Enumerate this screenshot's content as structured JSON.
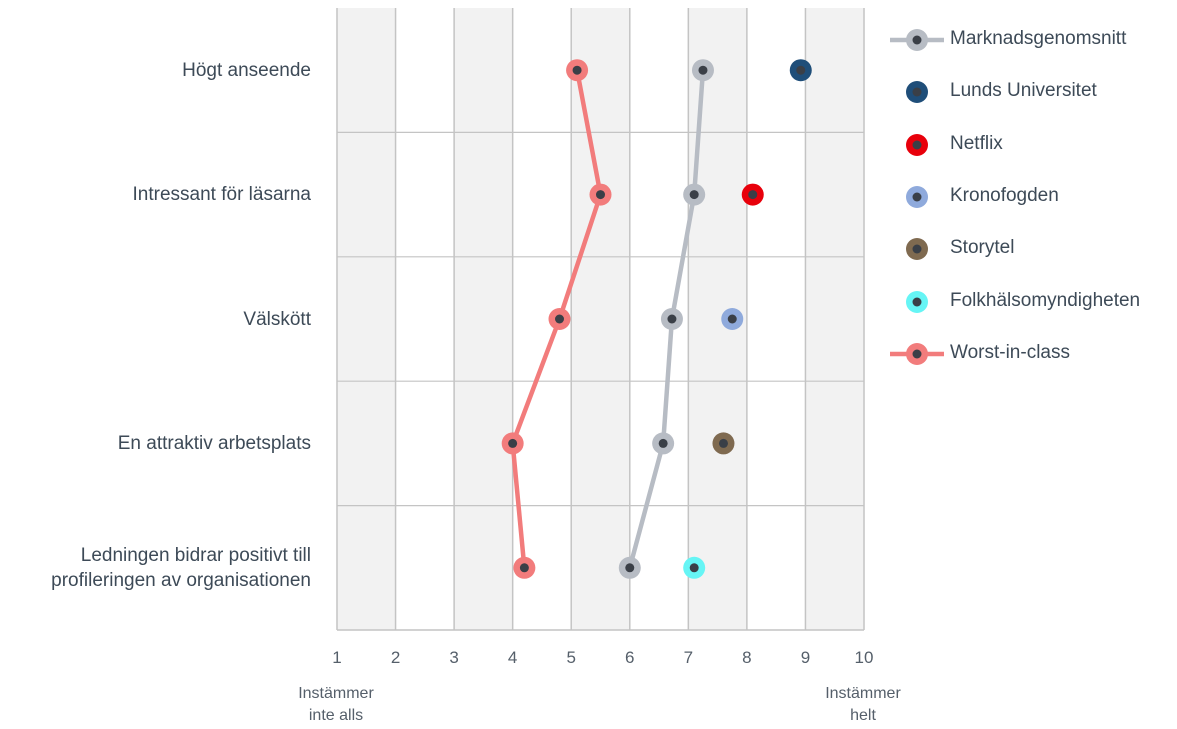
{
  "chart_data": {
    "type": "scatter",
    "orientation": "horizontal",
    "categories": [
      "Högt anseende",
      "Intressant för läsarna",
      "Välskött",
      "En attraktiv arbetsplats",
      "Ledningen bidrar positivt till profileringen av organisationen"
    ],
    "category_lines": [
      [
        "Högt anseende"
      ],
      [
        "Intressant för läsarna"
      ],
      [
        "Välskött"
      ],
      [
        "En attraktiv arbetsplats"
      ],
      [
        "Ledningen bidrar positivt till",
        "profileringen av organisationen"
      ]
    ],
    "xlim": [
      1,
      10
    ],
    "xticks": [
      "1",
      "2",
      "3",
      "4",
      "5",
      "6",
      "7",
      "8",
      "9",
      "10"
    ],
    "x_end_labels": {
      "low": [
        "Instämmer",
        "inte alls"
      ],
      "high": [
        "Instämmer",
        "helt"
      ]
    },
    "grid": "vertical",
    "legend_position": "right",
    "series": [
      {
        "name": "Marknadsgenomsnitt",
        "kind": "line",
        "color": "#b7bcc4",
        "values": [
          7.25,
          7.1,
          6.72,
          6.57,
          6.0
        ]
      },
      {
        "name": "Lunds Universitet",
        "kind": "point",
        "color": "#1f4e79",
        "values": [
          8.92,
          null,
          null,
          null,
          null
        ]
      },
      {
        "name": "Netflix",
        "kind": "point",
        "color": "#e8000b",
        "values": [
          null,
          8.1,
          null,
          null,
          null
        ]
      },
      {
        "name": "Kronofogden",
        "kind": "point",
        "color": "#8faadc",
        "values": [
          null,
          null,
          7.75,
          null,
          null
        ]
      },
      {
        "name": "Storytel",
        "kind": "point",
        "color": "#7f6a50",
        "values": [
          null,
          null,
          null,
          7.6,
          null
        ]
      },
      {
        "name": "Folkhälsomyndigheten",
        "kind": "point",
        "color": "#66f5f5",
        "values": [
          null,
          null,
          null,
          null,
          7.1
        ]
      },
      {
        "name": "Worst-in-class",
        "kind": "line",
        "color": "#f27c7c",
        "values": [
          5.1,
          5.5,
          4.8,
          4.0,
          4.2
        ]
      }
    ]
  }
}
